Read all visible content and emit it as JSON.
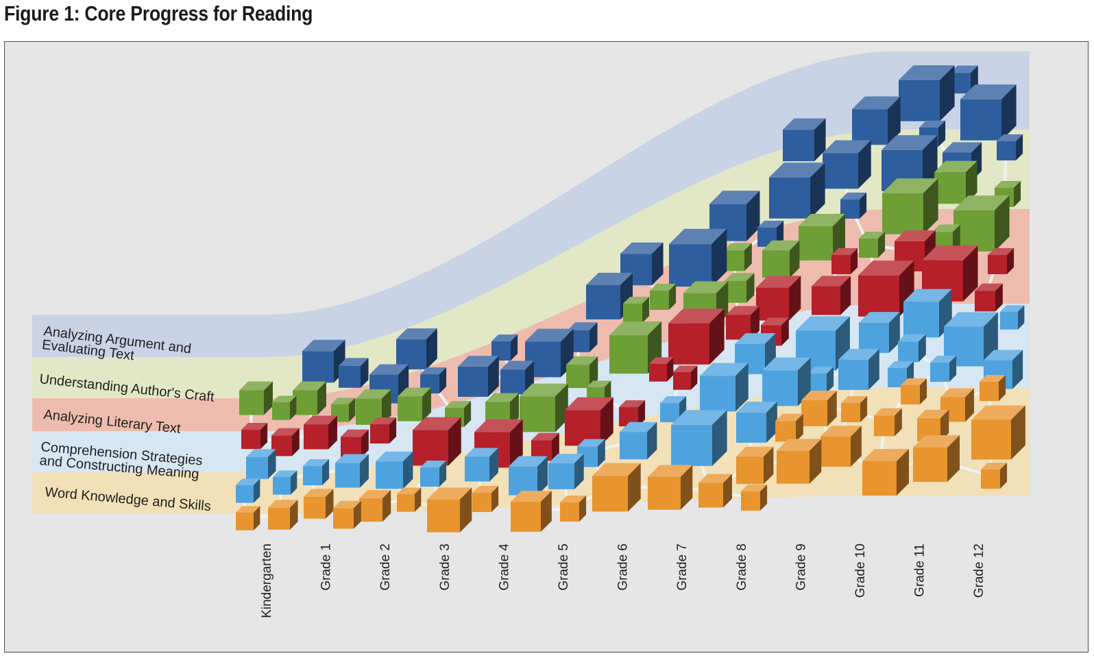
{
  "figure": {
    "title": "Figure 1: Core Progress for Reading"
  },
  "colors": {
    "frame_background": "#e6e6e7",
    "band_argument": "#c9d3e6",
    "band_craft": "#e2e8c6",
    "band_literary": "#eebcae",
    "band_comprehension": "#d6e6f2",
    "band_word": "#f2e0b8",
    "cube_argument": "#2f5e9e",
    "cube_craft": "#6e9e36",
    "cube_literary": "#b5202a",
    "cube_comprehension": "#4ea3df",
    "cube_word": "#e8942f",
    "connector": "#f2f2f2"
  },
  "strands": [
    {
      "key": "argument",
      "lines": [
        "Analyzing Argument and",
        "Evaluating Text"
      ]
    },
    {
      "key": "craft",
      "lines": [
        "Understanding Author's Craft"
      ]
    },
    {
      "key": "literary",
      "lines": [
        "Analyzing Literary Text"
      ]
    },
    {
      "key": "comprehension",
      "lines": [
        "Comprehension Strategies",
        "and Constructing Meaning"
      ]
    },
    {
      "key": "word",
      "lines": [
        "Word Knowledge and Skills"
      ]
    }
  ],
  "grades": [
    "Kindergarten",
    "Grade 1",
    "Grade 2",
    "Grade 3",
    "Grade 4",
    "Grade 5",
    "Grade 6",
    "Grade 7",
    "Grade 8",
    "Grade 9",
    "Grade 10",
    "Grade 11",
    "Grade 12"
  ]
}
